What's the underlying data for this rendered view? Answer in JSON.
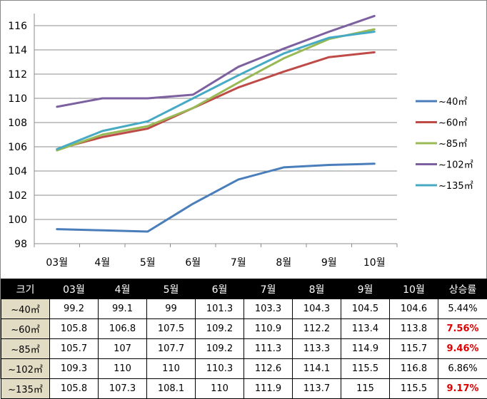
{
  "chart_data": {
    "type": "line",
    "categories": [
      "03월",
      "4월",
      "5월",
      "6월",
      "7월",
      "8월",
      "9월",
      "10월"
    ],
    "ylim": [
      98,
      117
    ],
    "yticks": [
      98,
      100,
      102,
      104,
      106,
      108,
      110,
      112,
      114,
      116
    ],
    "grid": "horizontal",
    "legend": "right",
    "series": [
      {
        "name": "~40㎡",
        "color": "#4a7ebb",
        "values": [
          99.2,
          99.1,
          99,
          101.3,
          103.3,
          104.3,
          104.5,
          104.6
        ]
      },
      {
        "name": "~60㎡",
        "color": "#be4b48",
        "values": [
          105.8,
          106.8,
          107.5,
          109.2,
          110.9,
          112.2,
          113.4,
          113.8
        ]
      },
      {
        "name": "~85㎡",
        "color": "#98b954",
        "values": [
          105.7,
          107,
          107.7,
          109.2,
          111.3,
          113.3,
          114.9,
          115.7
        ]
      },
      {
        "name": "~102㎡",
        "color": "#7d60a0",
        "values": [
          109.3,
          110,
          110,
          110.3,
          112.6,
          114.1,
          115.5,
          116.8
        ]
      },
      {
        "name": "~135㎡",
        "color": "#46aac5",
        "values": [
          105.8,
          107.3,
          108.1,
          110,
          111.9,
          113.7,
          115,
          115.5
        ]
      }
    ]
  },
  "table": {
    "headers": [
      "크기",
      "03월",
      "4월",
      "5월",
      "6월",
      "7월",
      "8월",
      "9월",
      "10월",
      "상승률"
    ],
    "rows": [
      {
        "size": "~40㎡",
        "values": [
          "99.2",
          "99.1",
          "99",
          "101.3",
          "103.3",
          "104.3",
          "104.5",
          "104.6"
        ],
        "rate": "5.44%",
        "highlight": false
      },
      {
        "size": "~60㎡",
        "values": [
          "105.8",
          "106.8",
          "107.5",
          "109.2",
          "110.9",
          "112.2",
          "113.4",
          "113.8"
        ],
        "rate": "7.56%",
        "highlight": true
      },
      {
        "size": "~85㎡",
        "values": [
          "105.7",
          "107",
          "107.7",
          "109.2",
          "111.3",
          "113.3",
          "114.9",
          "115.7"
        ],
        "rate": "9.46%",
        "highlight": true
      },
      {
        "size": "~102㎡",
        "values": [
          "109.3",
          "110",
          "110",
          "110.3",
          "112.6",
          "114.1",
          "115.5",
          "116.8"
        ],
        "rate": "6.86%",
        "highlight": false
      },
      {
        "size": "~135㎡",
        "values": [
          "105.8",
          "107.3",
          "108.1",
          "110",
          "111.9",
          "113.7",
          "115",
          "115.5"
        ],
        "rate": "9.17%",
        "highlight": true
      }
    ]
  }
}
